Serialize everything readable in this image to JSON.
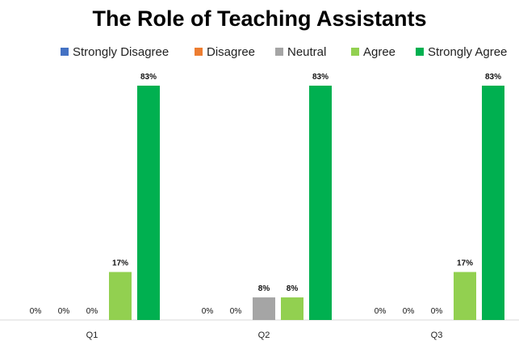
{
  "chart_data": {
    "type": "bar",
    "title": "The Role of Teaching Assistants",
    "categories": [
      "Q1",
      "Q2",
      "Q3"
    ],
    "value_format": "percent",
    "ylim": [
      0,
      83
    ],
    "grid": false,
    "legend_position": "top",
    "series": [
      {
        "name": "Strongly Disagree",
        "color": "#4472C4",
        "values": [
          0,
          0,
          0
        ]
      },
      {
        "name": "Disagree",
        "color": "#ED7D31",
        "values": [
          0,
          0,
          0
        ]
      },
      {
        "name": "Neutral",
        "color": "#A5A5A5",
        "values": [
          0,
          8,
          0
        ]
      },
      {
        "name": "Agree",
        "color": "#92D050",
        "values": [
          17,
          8,
          17
        ]
      },
      {
        "name": "Strongly Agree",
        "color": "#00B050",
        "values": [
          83,
          83,
          83
        ]
      }
    ]
  }
}
